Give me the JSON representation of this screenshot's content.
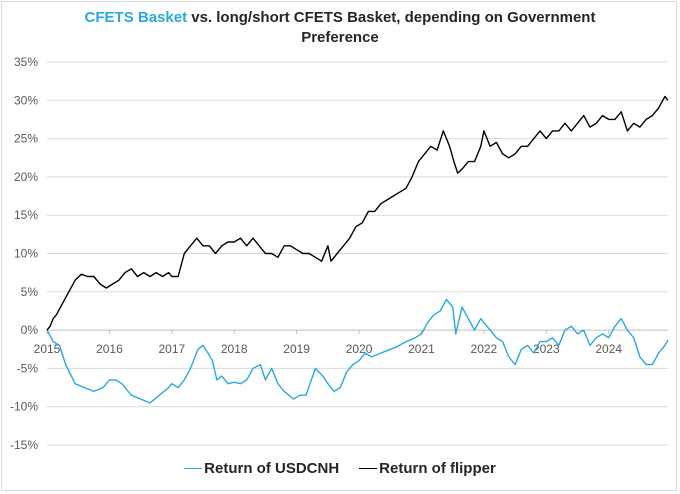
{
  "title": {
    "highlight": "CFETS Basket",
    "rest_line1": " vs. long/short  CFETS Basket, depending on Government",
    "line2": "Preference"
  },
  "colors": {
    "usdcnh": "#29a9e0",
    "flipper": "#000000",
    "grid": "#d9d9d9"
  },
  "chart_data": {
    "type": "line",
    "title": "CFETS Basket vs. long/short  CFETS Basket, depending on Government Preference",
    "x_ticks": [
      "2015",
      "2016",
      "2017",
      "2018",
      "2019",
      "2020",
      "2021",
      "2022",
      "2023",
      "2024"
    ],
    "x_range": [
      2015.0,
      2024.95
    ],
    "y_ticks": [
      "35%",
      "30%",
      "25%",
      "20%",
      "15%",
      "10%",
      "5%",
      "0%",
      "-5%",
      "-10%",
      "-15%"
    ],
    "ylim": [
      -15,
      35
    ],
    "grid": "horizontal",
    "legend_position": "bottom",
    "series": [
      {
        "name": "Return of USDCNH",
        "color": "#29a9e0",
        "points": [
          [
            2015.0,
            0
          ],
          [
            2015.1,
            -1.5
          ],
          [
            2015.2,
            -2
          ],
          [
            2015.3,
            -4.5
          ],
          [
            2015.45,
            -7
          ],
          [
            2015.6,
            -7.5
          ],
          [
            2015.75,
            -8
          ],
          [
            2015.9,
            -7.5
          ],
          [
            2016.0,
            -6.5
          ],
          [
            2016.1,
            -6.5
          ],
          [
            2016.2,
            -7
          ],
          [
            2016.35,
            -8.5
          ],
          [
            2016.5,
            -9
          ],
          [
            2016.65,
            -9.5
          ],
          [
            2016.8,
            -8.5
          ],
          [
            2016.95,
            -7.5
          ],
          [
            2017.0,
            -7
          ],
          [
            2017.1,
            -7.5
          ],
          [
            2017.2,
            -6.5
          ],
          [
            2017.3,
            -5
          ],
          [
            2017.42,
            -2.5
          ],
          [
            2017.5,
            -2
          ],
          [
            2017.58,
            -3
          ],
          [
            2017.65,
            -4
          ],
          [
            2017.72,
            -6.5
          ],
          [
            2017.8,
            -6
          ],
          [
            2017.9,
            -7
          ],
          [
            2018.0,
            -6.8
          ],
          [
            2018.1,
            -7
          ],
          [
            2018.2,
            -6.5
          ],
          [
            2018.3,
            -5
          ],
          [
            2018.42,
            -4.5
          ],
          [
            2018.5,
            -6.5
          ],
          [
            2018.6,
            -5
          ],
          [
            2018.7,
            -7
          ],
          [
            2018.8,
            -8
          ],
          [
            2018.95,
            -9
          ],
          [
            2019.05,
            -8.5
          ],
          [
            2019.15,
            -8.5
          ],
          [
            2019.3,
            -5
          ],
          [
            2019.42,
            -6
          ],
          [
            2019.5,
            -7
          ],
          [
            2019.6,
            -8
          ],
          [
            2019.7,
            -7.5
          ],
          [
            2019.8,
            -5.5
          ],
          [
            2019.9,
            -4.5
          ],
          [
            2020.0,
            -4
          ],
          [
            2020.1,
            -3
          ],
          [
            2020.2,
            -3.5
          ],
          [
            2020.35,
            -3
          ],
          [
            2020.5,
            -2.5
          ],
          [
            2020.6,
            -2.2
          ],
          [
            2020.75,
            -1.5
          ],
          [
            2020.9,
            -1
          ],
          [
            2021.0,
            -0.5
          ],
          [
            2021.1,
            1
          ],
          [
            2021.2,
            2
          ],
          [
            2021.3,
            2.5
          ],
          [
            2021.4,
            4
          ],
          [
            2021.5,
            3
          ],
          [
            2021.55,
            -0.5
          ],
          [
            2021.65,
            3
          ],
          [
            2021.75,
            1.5
          ],
          [
            2021.85,
            0
          ],
          [
            2021.95,
            1.5
          ],
          [
            2022.0,
            1
          ],
          [
            2022.1,
            0
          ],
          [
            2022.2,
            -1
          ],
          [
            2022.3,
            -1.5
          ],
          [
            2022.4,
            -3.5
          ],
          [
            2022.5,
            -4.5
          ],
          [
            2022.6,
            -2.5
          ],
          [
            2022.7,
            -2
          ],
          [
            2022.8,
            -3
          ],
          [
            2022.9,
            -1.5
          ],
          [
            2023.0,
            -1.5
          ],
          [
            2023.1,
            -1
          ],
          [
            2023.2,
            -2
          ],
          [
            2023.3,
            0
          ],
          [
            2023.4,
            0.5
          ],
          [
            2023.5,
            -0.5
          ],
          [
            2023.6,
            0
          ],
          [
            2023.7,
            -2
          ],
          [
            2023.8,
            -1
          ],
          [
            2023.9,
            -0.5
          ],
          [
            2024.0,
            -1
          ],
          [
            2024.1,
            0.5
          ],
          [
            2024.2,
            1.5
          ],
          [
            2024.3,
            0
          ],
          [
            2024.4,
            -1
          ],
          [
            2024.5,
            -3.5
          ],
          [
            2024.6,
            -4.5
          ],
          [
            2024.7,
            -4.5
          ],
          [
            2024.8,
            -3
          ],
          [
            2024.9,
            -2
          ],
          [
            2024.95,
            -1.3
          ]
        ]
      },
      {
        "name": "Return of flipper",
        "color": "#000000",
        "points": [
          [
            2015.0,
            0
          ],
          [
            2015.05,
            0.5
          ],
          [
            2015.1,
            1.5
          ],
          [
            2015.15,
            2
          ],
          [
            2015.25,
            3.5
          ],
          [
            2015.35,
            5
          ],
          [
            2015.45,
            6.5
          ],
          [
            2015.55,
            7.3
          ],
          [
            2015.65,
            7
          ],
          [
            2015.75,
            7
          ],
          [
            2015.85,
            6
          ],
          [
            2015.95,
            5.5
          ],
          [
            2016.05,
            6
          ],
          [
            2016.15,
            6.5
          ],
          [
            2016.25,
            7.5
          ],
          [
            2016.35,
            8
          ],
          [
            2016.45,
            7
          ],
          [
            2016.55,
            7.5
          ],
          [
            2016.65,
            7
          ],
          [
            2016.75,
            7.5
          ],
          [
            2016.85,
            7
          ],
          [
            2016.95,
            7.5
          ],
          [
            2017.0,
            7
          ],
          [
            2017.1,
            7
          ],
          [
            2017.2,
            10
          ],
          [
            2017.3,
            11
          ],
          [
            2017.4,
            12
          ],
          [
            2017.5,
            11
          ],
          [
            2017.6,
            11
          ],
          [
            2017.7,
            10
          ],
          [
            2017.8,
            11
          ],
          [
            2017.9,
            11.5
          ],
          [
            2018.0,
            11.5
          ],
          [
            2018.1,
            12
          ],
          [
            2018.2,
            11
          ],
          [
            2018.3,
            12
          ],
          [
            2018.4,
            11
          ],
          [
            2018.5,
            10
          ],
          [
            2018.6,
            10
          ],
          [
            2018.7,
            9.5
          ],
          [
            2018.8,
            11
          ],
          [
            2018.9,
            11
          ],
          [
            2019.0,
            10.5
          ],
          [
            2019.1,
            10
          ],
          [
            2019.2,
            10
          ],
          [
            2019.3,
            9.5
          ],
          [
            2019.4,
            9
          ],
          [
            2019.5,
            11
          ],
          [
            2019.55,
            9
          ],
          [
            2019.65,
            10
          ],
          [
            2019.75,
            11
          ],
          [
            2019.85,
            12
          ],
          [
            2019.95,
            13.5
          ],
          [
            2020.05,
            14
          ],
          [
            2020.15,
            15.5
          ],
          [
            2020.25,
            15.5
          ],
          [
            2020.35,
            16.5
          ],
          [
            2020.45,
            17
          ],
          [
            2020.55,
            17.5
          ],
          [
            2020.65,
            18
          ],
          [
            2020.75,
            18.5
          ],
          [
            2020.85,
            20
          ],
          [
            2020.95,
            22
          ],
          [
            2021.05,
            23
          ],
          [
            2021.15,
            24
          ],
          [
            2021.25,
            23.5
          ],
          [
            2021.35,
            26
          ],
          [
            2021.45,
            24
          ],
          [
            2021.52,
            22
          ],
          [
            2021.58,
            20.5
          ],
          [
            2021.65,
            21
          ],
          [
            2021.75,
            22
          ],
          [
            2021.85,
            22
          ],
          [
            2021.95,
            24
          ],
          [
            2022.0,
            26
          ],
          [
            2022.1,
            24
          ],
          [
            2022.2,
            24.5
          ],
          [
            2022.3,
            23
          ],
          [
            2022.4,
            22.5
          ],
          [
            2022.5,
            23
          ],
          [
            2022.6,
            24
          ],
          [
            2022.7,
            24
          ],
          [
            2022.8,
            25
          ],
          [
            2022.9,
            26
          ],
          [
            2023.0,
            25
          ],
          [
            2023.1,
            26
          ],
          [
            2023.2,
            26
          ],
          [
            2023.3,
            27
          ],
          [
            2023.4,
            26
          ],
          [
            2023.5,
            27
          ],
          [
            2023.6,
            28
          ],
          [
            2023.7,
            26.5
          ],
          [
            2023.8,
            27
          ],
          [
            2023.9,
            28
          ],
          [
            2024.0,
            27.5
          ],
          [
            2024.1,
            27.5
          ],
          [
            2024.2,
            28.5
          ],
          [
            2024.3,
            26
          ],
          [
            2024.4,
            27
          ],
          [
            2024.5,
            26.5
          ],
          [
            2024.6,
            27.5
          ],
          [
            2024.7,
            28
          ],
          [
            2024.8,
            29
          ],
          [
            2024.9,
            30.5
          ],
          [
            2024.95,
            30
          ]
        ]
      }
    ]
  }
}
